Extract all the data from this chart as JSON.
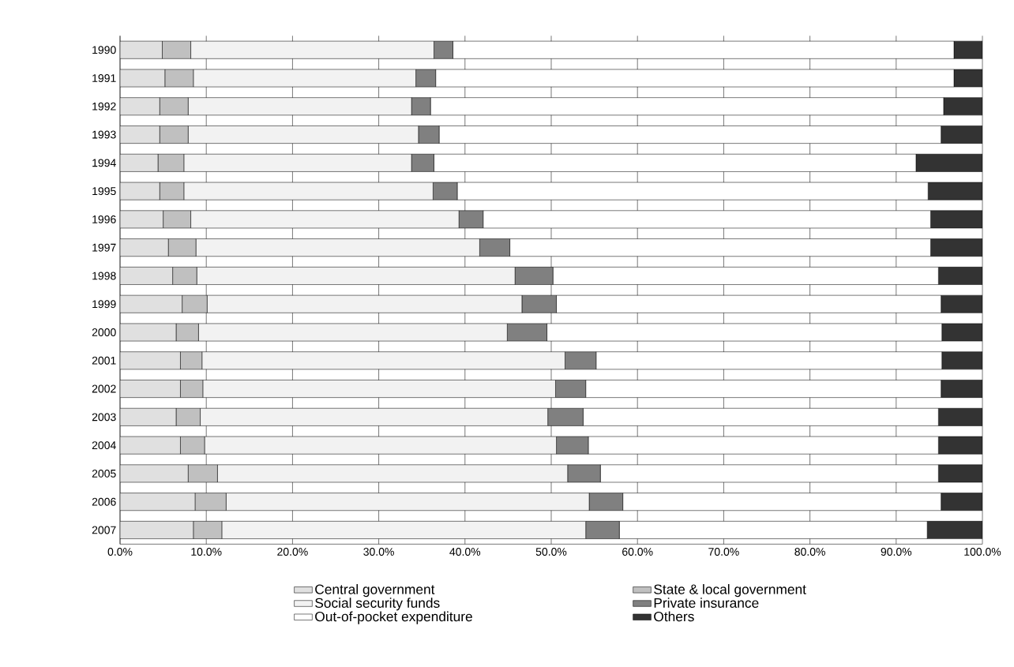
{
  "chart_data": {
    "type": "bar",
    "orientation": "horizontal",
    "stacked": true,
    "categories": [
      "1990",
      "1991",
      "1992",
      "1993",
      "1994",
      "1995",
      "1996",
      "1997",
      "1998",
      "1999",
      "2000",
      "2001",
      "2002",
      "2003",
      "2004",
      "2005",
      "2006",
      "2007"
    ],
    "series": [
      {
        "name": "Central government",
        "color": "#e0e0e0",
        "values": [
          4.9,
          5.2,
          4.6,
          4.6,
          4.4,
          4.6,
          5.0,
          5.6,
          6.1,
          7.2,
          6.5,
          7.0,
          7.0,
          6.5,
          7.0,
          7.9,
          8.7,
          8.5
        ]
      },
      {
        "name": "State & local government",
        "color": "#c0c0c0",
        "values": [
          3.3,
          3.3,
          3.3,
          3.3,
          3.0,
          2.8,
          3.2,
          3.2,
          2.8,
          2.9,
          2.6,
          2.5,
          2.6,
          2.8,
          2.8,
          3.4,
          3.6,
          3.3
        ]
      },
      {
        "name": "Social security funds",
        "color": "#f2f2f2",
        "values": [
          28.2,
          25.8,
          25.9,
          26.7,
          26.4,
          28.9,
          31.1,
          32.9,
          36.9,
          36.5,
          35.8,
          42.1,
          40.9,
          40.3,
          40.8,
          40.6,
          42.1,
          42.2
        ]
      },
      {
        "name": "Private insurance",
        "color": "#808080",
        "values": [
          2.2,
          2.3,
          2.2,
          2.4,
          2.6,
          2.8,
          2.8,
          3.5,
          4.4,
          4.0,
          4.6,
          3.6,
          3.5,
          4.1,
          3.7,
          3.8,
          3.9,
          3.9
        ]
      },
      {
        "name": "Out-of-pocket expenditure",
        "color": "#ffffff",
        "values": [
          58.1,
          60.1,
          59.5,
          58.2,
          55.9,
          54.6,
          51.9,
          48.8,
          44.7,
          44.6,
          45.8,
          40.1,
          41.2,
          41.2,
          40.6,
          39.2,
          36.9,
          35.7
        ]
      },
      {
        "name": "Others",
        "color": "#333333",
        "values": [
          3.3,
          3.3,
          4.5,
          4.8,
          7.7,
          6.3,
          6.0,
          6.0,
          5.1,
          4.8,
          4.7,
          4.7,
          4.8,
          5.1,
          5.1,
          5.1,
          4.8,
          6.4
        ]
      }
    ],
    "xlim": [
      0,
      100
    ],
    "xticks": [
      {
        "value": 0,
        "label": "0.0%"
      },
      {
        "value": 10,
        "label": "10.0%"
      },
      {
        "value": 20,
        "label": "20.0%"
      },
      {
        "value": 30,
        "label": "30.0%"
      },
      {
        "value": 40,
        "label": "40.0%"
      },
      {
        "value": 50,
        "label": "50.0%"
      },
      {
        "value": 60,
        "label": "60.0%"
      },
      {
        "value": 70,
        "label": "70.0%"
      },
      {
        "value": 80,
        "label": "80.0%"
      },
      {
        "value": 90,
        "label": "90.0%"
      },
      {
        "value": 100,
        "label": "100.0%"
      }
    ],
    "grid": "x",
    "legend": "bottom"
  }
}
